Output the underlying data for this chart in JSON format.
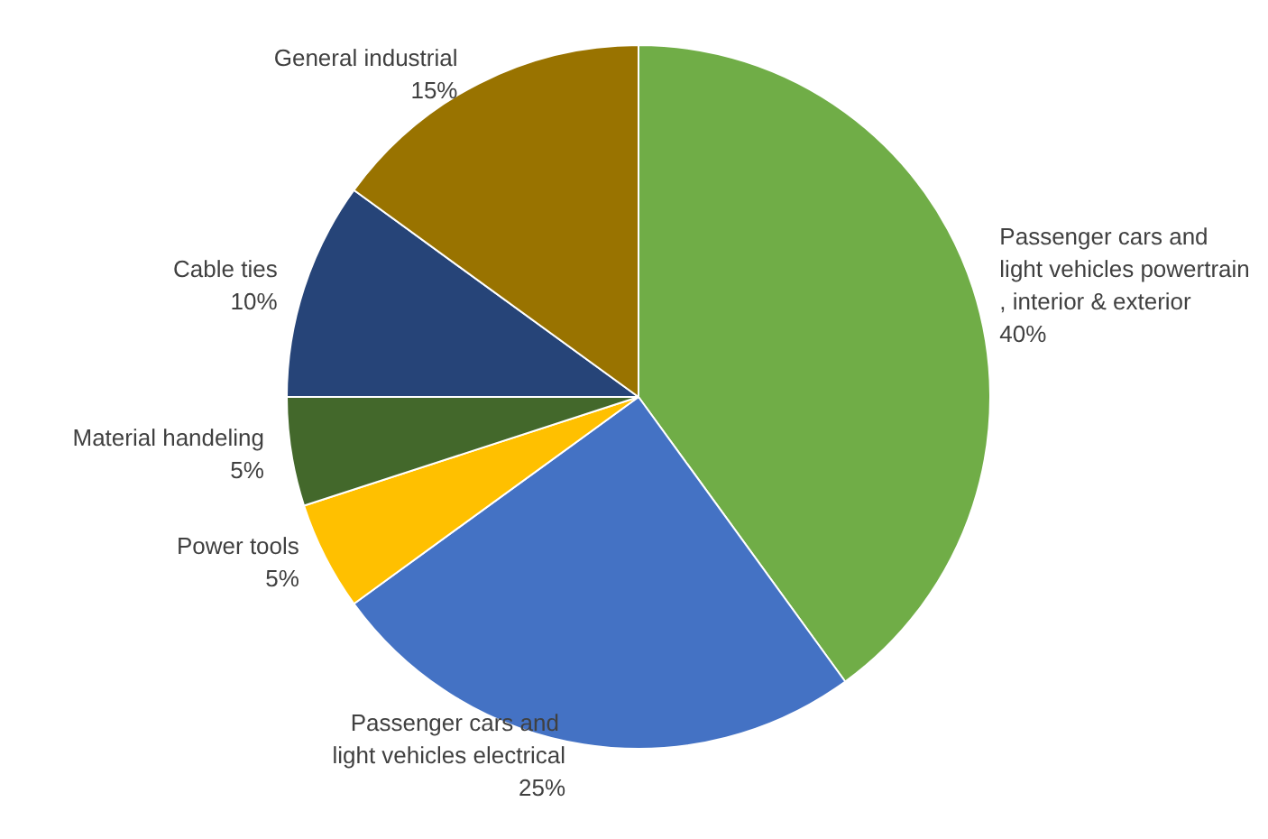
{
  "chart_data": {
    "type": "pie",
    "categories": [
      "Passenger cars and light vehicles powertrain, interior & exterior",
      "Passenger cars and light vehicles electrical",
      "Power tools",
      "Material handeling",
      "Cable ties",
      "General industrial"
    ],
    "values": [
      40,
      25,
      5,
      5,
      10,
      15
    ],
    "value_labels": [
      "40%",
      "25%",
      "5%",
      "5%",
      "10%",
      "15%"
    ],
    "colors": [
      "#70ad47",
      "#4472c4",
      "#ffc000",
      "#43682b",
      "#264478",
      "#997300"
    ],
    "legend": false
  }
}
